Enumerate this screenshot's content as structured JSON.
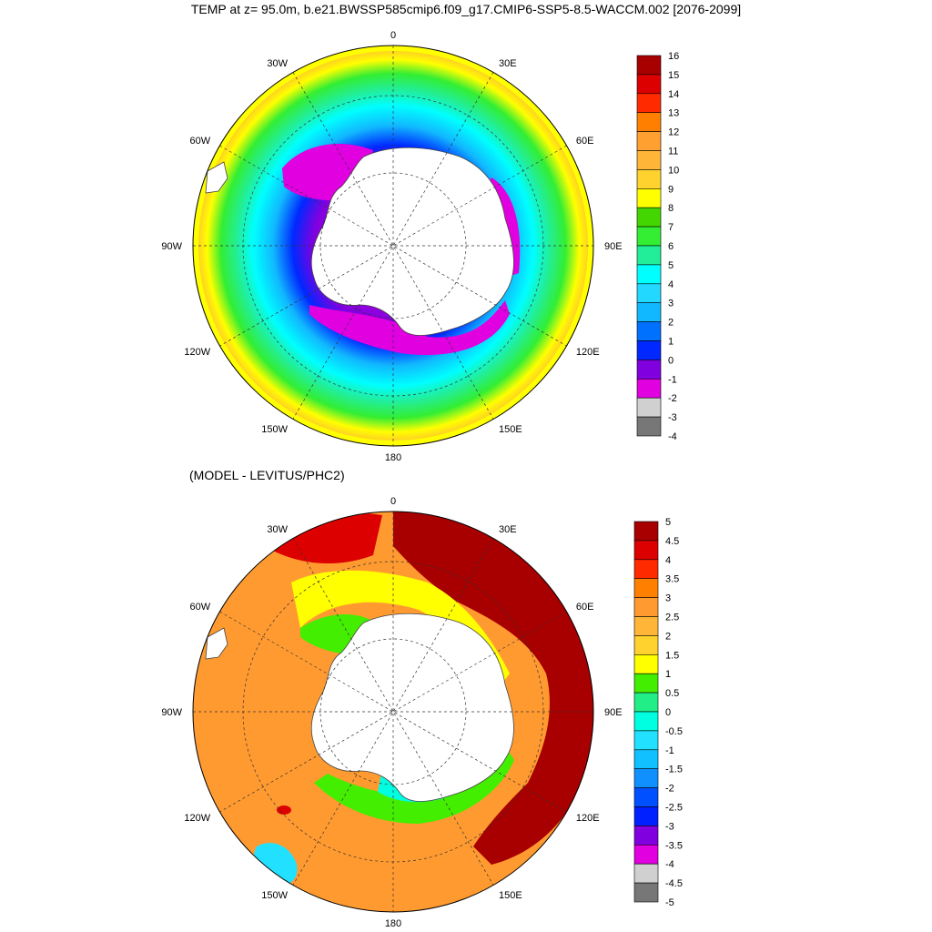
{
  "title": "TEMP at z=  95.0m, b.e21.BWSSP585cmip6.f09_g17.CMIP6-SSP5-8.5-WACCM.002 [2076-2099]",
  "diff_title": "(MODEL - LEVITUS/PHC2)",
  "longitude_labels": [
    "0",
    "30E",
    "60E",
    "90E",
    "120E",
    "150E",
    "180",
    "150W",
    "120W",
    "90W",
    "60W",
    "30W"
  ],
  "top_colorbar": {
    "labels": [
      "16",
      "15",
      "14",
      "13",
      "12",
      "11",
      "10",
      "9",
      "8",
      "7",
      "6",
      "5",
      "4",
      "3",
      "2",
      "1",
      "0",
      "-1",
      "-2",
      "-3",
      "-4"
    ],
    "colors": [
      "#a80000",
      "#dd0000",
      "#ff2a00",
      "#ff8000",
      "#ffa030",
      "#ffb638",
      "#ffd22e",
      "#ffff00",
      "#44d600",
      "#33ee33",
      "#22ee99",
      "#00ffff",
      "#22d8ff",
      "#11b8ff",
      "#0070ff",
      "#0028ff",
      "#8000e0",
      "#e000e0",
      "#d0d0d0",
      "#777777"
    ]
  },
  "bottom_colorbar": {
    "labels": [
      "5",
      "4.5",
      "4",
      "3.5",
      "3",
      "2.5",
      "2",
      "1.5",
      "1",
      "0.5",
      "0",
      "-0.5",
      "-1",
      "-1.5",
      "-2",
      "-2.5",
      "-3",
      "-3.5",
      "-4",
      "-4.5",
      "-5"
    ],
    "colors": [
      "#a80000",
      "#dd0000",
      "#ff2a00",
      "#ff8000",
      "#ff9a30",
      "#ffb638",
      "#ffd22e",
      "#ffff00",
      "#44ee00",
      "#22ee88",
      "#00ffe0",
      "#22e0ff",
      "#11c0ff",
      "#1090ff",
      "#0050ff",
      "#0020ff",
      "#8000e0",
      "#e000e0",
      "#d0d0d0",
      "#777777"
    ]
  }
}
